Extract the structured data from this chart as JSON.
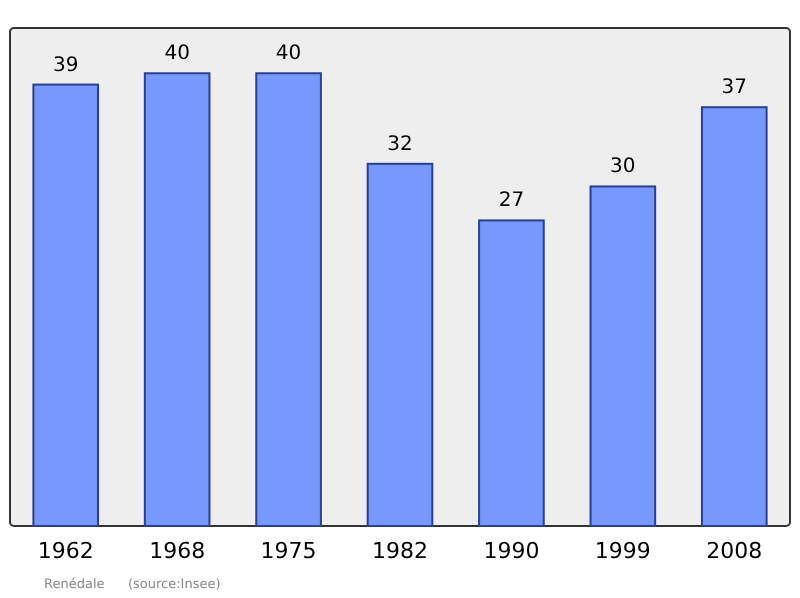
{
  "chart_data": {
    "type": "bar",
    "categories": [
      "1962",
      "1968",
      "1975",
      "1982",
      "1990",
      "1999",
      "2008"
    ],
    "values": [
      39,
      40,
      40,
      32,
      27,
      30,
      37
    ],
    "color": "#7799ff",
    "ylim": [
      0,
      44
    ],
    "data_labels": true,
    "annotations": [
      "Renédale",
      "(source:Insee)"
    ]
  }
}
